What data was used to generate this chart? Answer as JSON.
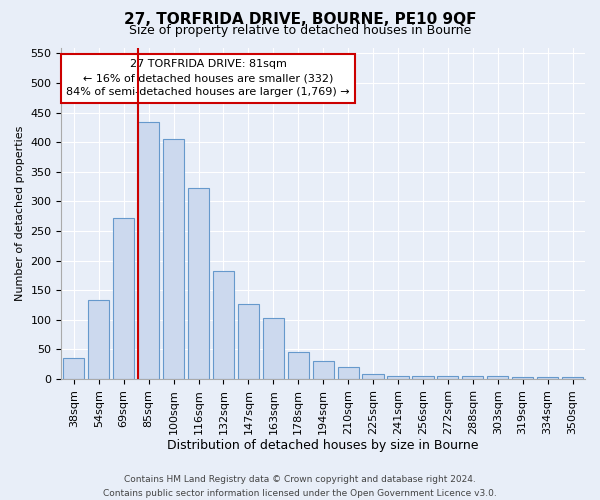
{
  "title": "27, TORFRIDA DRIVE, BOURNE, PE10 9QF",
  "subtitle": "Size of property relative to detached houses in Bourne",
  "xlabel": "Distribution of detached houses by size in Bourne",
  "ylabel": "Number of detached properties",
  "bar_labels": [
    "38sqm",
    "54sqm",
    "69sqm",
    "85sqm",
    "100sqm",
    "116sqm",
    "132sqm",
    "147sqm",
    "163sqm",
    "178sqm",
    "194sqm",
    "210sqm",
    "225sqm",
    "241sqm",
    "256sqm",
    "272sqm",
    "288sqm",
    "303sqm",
    "319sqm",
    "334sqm",
    "350sqm"
  ],
  "bar_values": [
    35,
    133,
    272,
    435,
    405,
    323,
    182,
    126,
    103,
    45,
    30,
    21,
    8,
    5,
    5,
    5,
    5,
    5,
    3,
    3,
    3
  ],
  "bar_color": "#ccd9ee",
  "bar_edge_color": "#6699cc",
  "annotation_text_line1": "27 TORFRIDA DRIVE: 81sqm",
  "annotation_text_line2": "← 16% of detached houses are smaller (332)",
  "annotation_text_line3": "84% of semi-detached houses are larger (1,769) →",
  "vline_color": "#cc0000",
  "annotation_box_facecolor": "#ffffff",
  "annotation_box_edgecolor": "#cc0000",
  "footer_line1": "Contains HM Land Registry data © Crown copyright and database right 2024.",
  "footer_line2": "Contains public sector information licensed under the Open Government Licence v3.0.",
  "ylim": [
    0,
    560
  ],
  "yticks": [
    0,
    50,
    100,
    150,
    200,
    250,
    300,
    350,
    400,
    450,
    500,
    550
  ],
  "background_color": "#e8eef8",
  "grid_color": "#ffffff",
  "title_fontsize": 11,
  "subtitle_fontsize": 9,
  "tick_fontsize": 8,
  "ylabel_fontsize": 8,
  "xlabel_fontsize": 9,
  "annotation_fontsize": 8,
  "footer_fontsize": 6.5
}
